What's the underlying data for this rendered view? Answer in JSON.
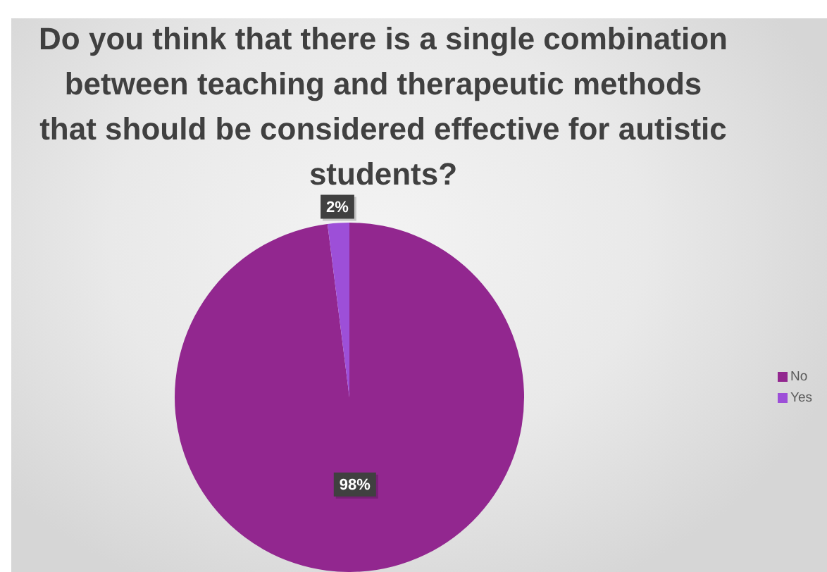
{
  "chart_data": {
    "type": "pie",
    "title": "Do you think that there is a single combination between teaching and therapeutic methods that should be considered effective for autistic students?",
    "categories": [
      "No",
      "Yes"
    ],
    "values": [
      98,
      2
    ],
    "colors": [
      "#92278f",
      "#9d4fd8"
    ],
    "value_labels": [
      "98%",
      "2%"
    ],
    "legend": "right"
  }
}
